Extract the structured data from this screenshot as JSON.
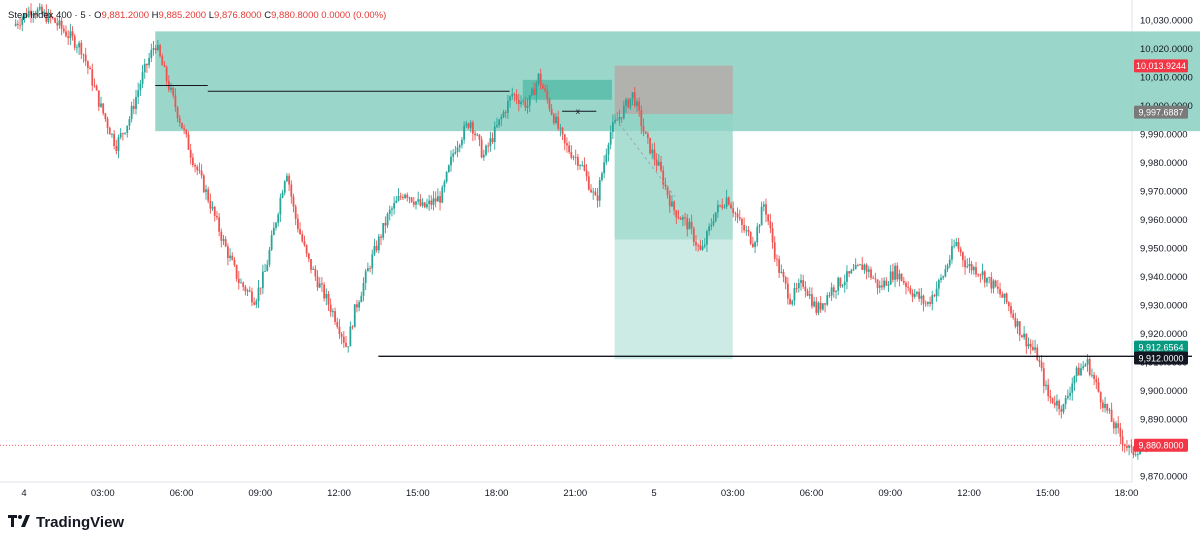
{
  "header": {
    "symbol": "Step Index 400 · 5 ·",
    "open_label": "O",
    "open": "9,881.2000",
    "high_label": "H",
    "high": "9,885.2000",
    "low_label": "L",
    "low": "9,876.8000",
    "close_label": "C",
    "close": "9,880.8000",
    "change": "0.0000 (0.00%)"
  },
  "brand": {
    "name": "TradingView",
    "logo_icon": "tradingview-logo-icon"
  },
  "colors": {
    "up": "#26a69a",
    "down": "#ef5350",
    "zone": "#8fd3c4",
    "zone_dark": "#5cbfab",
    "gray_box": "#b5aba8",
    "price_red": "#f23645",
    "price_green": "#089981"
  },
  "chart_data": {
    "type": "candlestick",
    "title": "",
    "ylim": [
      9865,
      10035
    ],
    "y_ticks": [
      "10,030.0000",
      "10,020.0000",
      "10,010.0000",
      "10,000.0000",
      "9,990.0000",
      "9,980.0000",
      "9,970.0000",
      "9,960.0000",
      "9,950.0000",
      "9,940.0000",
      "9,930.0000",
      "9,920.0000",
      "9,910.0000",
      "9,900.0000",
      "9,890.0000",
      "9,880.0000",
      "9,870.0000"
    ],
    "y_tick_values": [
      10030,
      10020,
      10010,
      10000,
      9990,
      9980,
      9970,
      9960,
      9950,
      9940,
      9930,
      9920,
      9910,
      9900,
      9890,
      9880,
      9870
    ],
    "x_ticks": [
      "4",
      "03:00",
      "06:00",
      "09:00",
      "12:00",
      "15:00",
      "18:00",
      "21:00",
      "5",
      "03:00",
      "06:00",
      "09:00",
      "12:00",
      "15:00",
      "18:00"
    ],
    "x_tick_hours": [
      0,
      3,
      6,
      9,
      12,
      15,
      18,
      21,
      24,
      27,
      30,
      33,
      36,
      39,
      42
    ],
    "x_range_hours": [
      0,
      42
    ],
    "price_path": [
      [
        -0.4,
        10028
      ],
      [
        0.3,
        10034
      ],
      [
        1.1,
        10030
      ],
      [
        2.2,
        10020
      ],
      [
        2.9,
        10000
      ],
      [
        3.5,
        9986
      ],
      [
        4.0,
        9995
      ],
      [
        4.5,
        10010
      ],
      [
        5.0,
        10022
      ],
      [
        5.4,
        10010
      ],
      [
        5.9,
        9996
      ],
      [
        6.4,
        9982
      ],
      [
        7.0,
        9968
      ],
      [
        7.6,
        9952
      ],
      [
        8.2,
        9938
      ],
      [
        8.8,
        9932
      ],
      [
        9.2,
        9942
      ],
      [
        9.6,
        9960
      ],
      [
        10.0,
        9978
      ],
      [
        10.3,
        9962
      ],
      [
        10.8,
        9946
      ],
      [
        11.3,
        9936
      ],
      [
        11.9,
        9925
      ],
      [
        12.3,
        9915
      ],
      [
        12.6,
        9928
      ],
      [
        13.2,
        9945
      ],
      [
        13.9,
        9962
      ],
      [
        14.5,
        9970
      ],
      [
        15.2,
        9964
      ],
      [
        15.9,
        9968
      ],
      [
        16.4,
        9985
      ],
      [
        17.0,
        9995
      ],
      [
        17.5,
        9982
      ],
      [
        18.0,
        9992
      ],
      [
        18.6,
        10004
      ],
      [
        19.2,
        10000
      ],
      [
        19.6,
        10010
      ],
      [
        20.1,
        9998
      ],
      [
        20.6,
        9986
      ],
      [
        21.2,
        9980
      ],
      [
        21.8,
        9966
      ],
      [
        22.3,
        9990
      ],
      [
        22.8,
        9998
      ],
      [
        23.2,
        10004
      ],
      [
        23.7,
        9988
      ],
      [
        24.2,
        9978
      ],
      [
        24.7,
        9964
      ],
      [
        25.3,
        9958
      ],
      [
        25.8,
        9948
      ],
      [
        26.3,
        9962
      ],
      [
        26.8,
        9968
      ],
      [
        27.3,
        9958
      ],
      [
        27.8,
        9952
      ],
      [
        28.2,
        9966
      ],
      [
        28.7,
        9944
      ],
      [
        29.2,
        9932
      ],
      [
        29.7,
        9938
      ],
      [
        30.2,
        9928
      ],
      [
        30.8,
        9936
      ],
      [
        31.4,
        9940
      ],
      [
        32.0,
        9944
      ],
      [
        32.6,
        9936
      ],
      [
        33.2,
        9942
      ],
      [
        33.8,
        9935
      ],
      [
        34.4,
        9930
      ],
      [
        35.0,
        9940
      ],
      [
        35.5,
        9952
      ],
      [
        35.9,
        9944
      ],
      [
        36.4,
        9942
      ],
      [
        37.0,
        9936
      ],
      [
        37.5,
        9930
      ],
      [
        38.0,
        9920
      ],
      [
        38.6,
        9912
      ],
      [
        39.0,
        9898
      ],
      [
        39.6,
        9894
      ],
      [
        40.0,
        9905
      ],
      [
        40.5,
        9910
      ],
      [
        41.0,
        9898
      ],
      [
        41.5,
        9888
      ],
      [
        41.9,
        9882
      ],
      [
        42.2,
        9878
      ],
      [
        42.6,
        9880.8
      ]
    ],
    "zones": [
      {
        "name": "supply-zone",
        "x": [
          5,
          45.4
        ],
        "y": [
          9991,
          10026
        ]
      },
      {
        "name": "small-zone",
        "x": [
          19.0,
          22.4
        ],
        "y": [
          10002,
          10009
        ]
      },
      {
        "name": "gray-box",
        "x": [
          22.5,
          27.0
        ],
        "y": [
          9997,
          10014
        ]
      },
      {
        "name": "tp-zone",
        "x": [
          22.5,
          27.0
        ],
        "y": [
          9911,
          9997
        ]
      },
      {
        "name": "tp-zone-dark",
        "x": [
          22.5,
          27.0
        ],
        "y": [
          9953,
          9997
        ]
      }
    ],
    "levels": [
      {
        "name": "support-line",
        "y": 9912,
        "x": [
          13.5,
          48
        ]
      },
      {
        "name": "resistance-line",
        "y": 10005,
        "x": [
          7.0,
          18.5
        ]
      },
      {
        "name": "short-line",
        "y": 10007,
        "x": [
          5.0,
          7.0
        ]
      },
      {
        "name": "x-line",
        "y": 9998,
        "x": [
          20.5,
          21.8
        ]
      }
    ],
    "price_labels": [
      {
        "name": "upper-red-label",
        "text": "10,013.9244",
        "y": 10013.9244,
        "color": "#f23645"
      },
      {
        "name": "gray-label",
        "text": "9,997.6887",
        "y": 9997.6887,
        "color": "#7a7a7a"
      },
      {
        "name": "green-label",
        "text": "9,912.6564",
        "y": 9915.2,
        "color": "#089981"
      },
      {
        "name": "black-label",
        "text": "9,912.0000",
        "y": 9911.4,
        "color": "#131722"
      },
      {
        "name": "last-price-label",
        "text": "9,880.8000",
        "y": 9880.8,
        "color": "#f23645"
      }
    ],
    "last_price": 9880.8,
    "marker_text": "x"
  }
}
